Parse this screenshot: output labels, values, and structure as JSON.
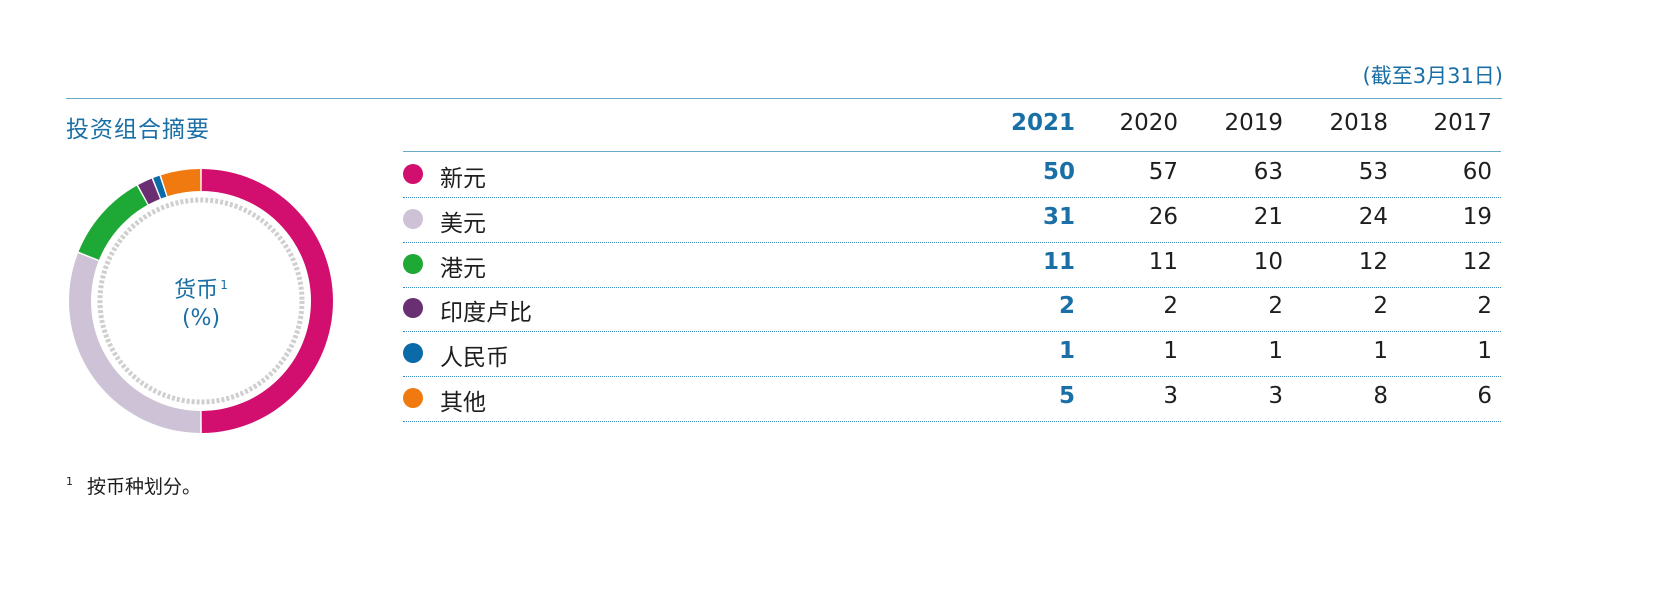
{
  "as_of": "(截至3月31日)",
  "section_title": "投资组合摘要",
  "donut": {
    "label_line1": "货币",
    "label_sup": "1",
    "label_line2": "(%)"
  },
  "footnote": {
    "marker": "1",
    "text": "按币种划分。"
  },
  "chart_data": {
    "type": "table",
    "columns": [
      "2021",
      "2020",
      "2019",
      "2018",
      "2017"
    ],
    "highlight_column": "2021",
    "rows": [
      {
        "label": "新元",
        "color": "#d20f6e",
        "values": [
          50,
          57,
          63,
          53,
          60
        ]
      },
      {
        "label": "美元",
        "color": "#cdc2d6",
        "values": [
          31,
          26,
          21,
          24,
          19
        ]
      },
      {
        "label": "港元",
        "color": "#1ea836",
        "values": [
          11,
          11,
          10,
          12,
          12
        ]
      },
      {
        "label": "印度卢比",
        "color": "#6a2e72",
        "values": [
          2,
          2,
          2,
          2,
          2
        ]
      },
      {
        "label": "人民币",
        "color": "#0b6aa8",
        "values": [
          1,
          1,
          1,
          1,
          1
        ]
      },
      {
        "label": "其他",
        "color": "#f07a10",
        "values": [
          5,
          3,
          3,
          8,
          6
        ]
      }
    ],
    "donut": {
      "type": "pie",
      "values_column": "2021",
      "start": "top",
      "direction": "clockwise"
    }
  }
}
